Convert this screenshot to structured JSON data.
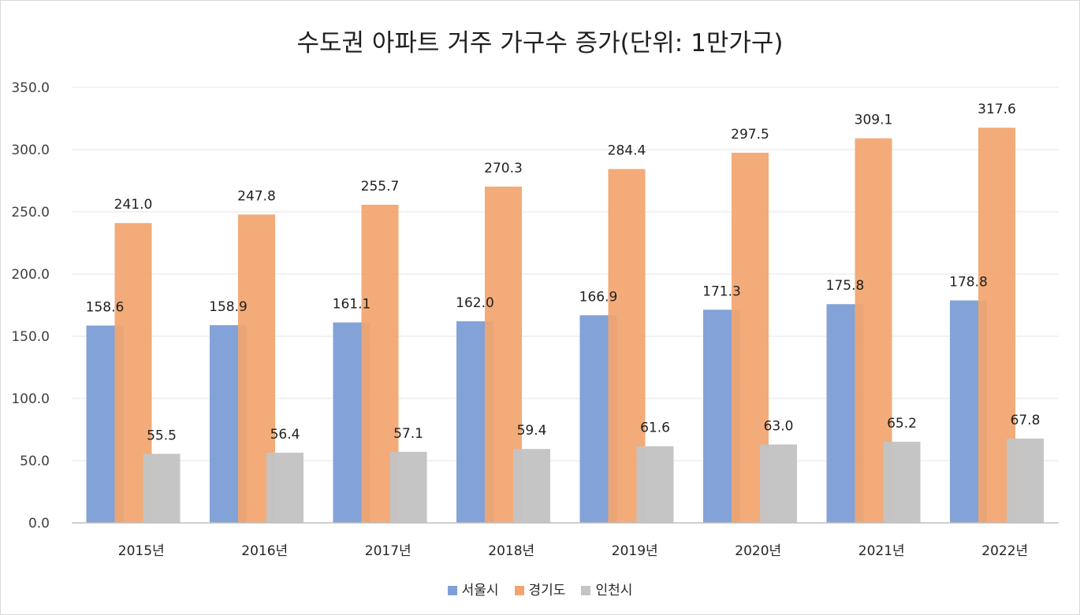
{
  "chart_data": {
    "type": "bar",
    "title": "수도권 아파트 거주 가구수 증가(단위: 1만가구)",
    "xlabel": "",
    "ylabel": "",
    "ylim": [
      0,
      350
    ],
    "yticks": [
      "0.0",
      "50.0",
      "100.0",
      "150.0",
      "200.0",
      "250.0",
      "300.0",
      "350.0"
    ],
    "grid": true,
    "legend_position": "bottom",
    "categories": [
      "2015년",
      "2016년",
      "2017년",
      "2018년",
      "2019년",
      "2020년",
      "2021년",
      "2022년"
    ],
    "series": [
      {
        "name": "서울시",
        "color": "#7f9fd6",
        "values": [
          158.6,
          158.9,
          161.1,
          162.0,
          166.9,
          171.3,
          175.8,
          178.8
        ],
        "labels": [
          "158.6",
          "158.9",
          "161.1",
          "162.0",
          "166.9",
          "171.3",
          "175.8",
          "178.8"
        ]
      },
      {
        "name": "경기도",
        "color": "#f2a56f",
        "values": [
          241.0,
          247.8,
          255.7,
          270.3,
          284.4,
          297.5,
          309.1,
          317.6
        ],
        "labels": [
          "241.0",
          "247.8",
          "255.7",
          "270.3",
          "284.4",
          "297.5",
          "309.1",
          "317.6"
        ]
      },
      {
        "name": "인천시",
        "color": "#c3c3c3",
        "values": [
          55.5,
          56.4,
          57.1,
          59.4,
          61.6,
          63.0,
          65.2,
          67.8
        ],
        "labels": [
          "55.5",
          "56.4",
          "57.1",
          "59.4",
          "61.6",
          "63.0",
          "65.2",
          "67.8"
        ]
      }
    ]
  }
}
